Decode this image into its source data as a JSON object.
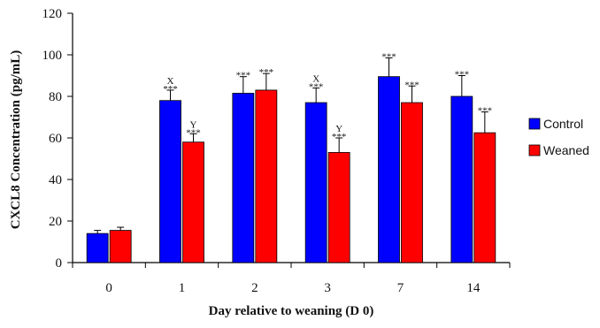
{
  "chart_data": {
    "type": "bar",
    "xlabel": "Day relative to weaning (D 0)",
    "ylabel": "CXCL8 Concentration (pg/mL)",
    "ylim": [
      0,
      120
    ],
    "yticks": [
      "0",
      "20",
      "40",
      "60",
      "80",
      "100",
      "120"
    ],
    "categories": [
      "0",
      "1",
      "2",
      "3",
      "7",
      "14"
    ],
    "grid": false,
    "legend_position": "right",
    "series": [
      {
        "name": "Control",
        "color": "#0000ff",
        "values": [
          14,
          78,
          81.5,
          77,
          89.5,
          80
        ],
        "errors": [
          1.5,
          5,
          8,
          7,
          9,
          10
        ],
        "annotations": [
          "",
          "***",
          "***",
          "***",
          "***",
          "***"
        ],
        "letters": [
          "",
          "X",
          "",
          "X",
          "",
          ""
        ]
      },
      {
        "name": "Weaned",
        "color": "#ff0000",
        "values": [
          15.5,
          58,
          83,
          53,
          77,
          62.5
        ],
        "errors": [
          1.5,
          4,
          8,
          7,
          8,
          10
        ],
        "annotations": [
          "",
          "***",
          "***",
          "***",
          "***",
          "***"
        ],
        "letters": [
          "",
          "Y",
          "",
          "Y",
          "",
          ""
        ]
      }
    ]
  }
}
